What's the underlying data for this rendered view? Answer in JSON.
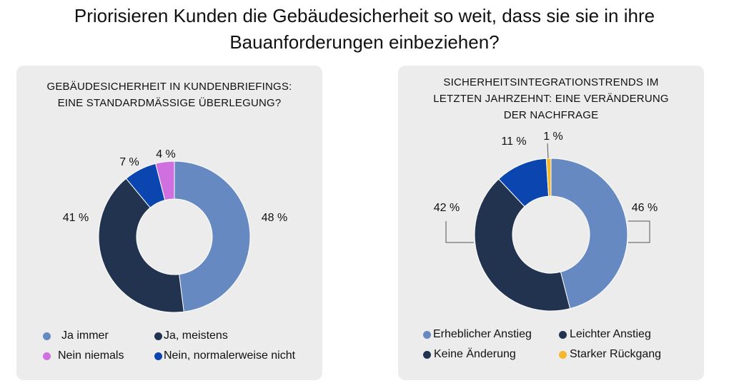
{
  "title_line1": "Priorisieren Kunden die Gebäudesicherheit so weit, dass sie sie in ihre",
  "title_line2": "Bauanforderungen einbeziehen?",
  "colors": {
    "steel_blue": "#6589c0",
    "navy": "#223350",
    "royal_blue": "#0a45b0",
    "violet": "#cf6fe0",
    "amber": "#f5b82c",
    "card_bg": "#ececec"
  },
  "chart_data": [
    {
      "type": "pie",
      "donut": true,
      "title_line1": "GEBÄUDESICHERHEIT IN KUNDENBRIEFINGS:",
      "title_line2": "EINE STANDARDMÄSSIGE ÜBERLEGUNG?",
      "slices": [
        {
          "label": "Ja immer",
          "value": 48,
          "display": "48 %",
          "color": "#6589c0"
        },
        {
          "label": "Ja, meistens",
          "value": 41,
          "display": "41 %",
          "color": "#223350"
        },
        {
          "label": "Nein, normalerweise nicht",
          "value": 7,
          "display": "7 %",
          "color": "#0a45b0"
        },
        {
          "label": "Nein niemals",
          "value": 4,
          "display": "4 %",
          "color": "#cf6fe0"
        }
      ],
      "legend": [
        "Ja immer",
        "Ja, meistens",
        "Nein niemals",
        "Nein, normalerweise nicht"
      ],
      "legend_placement": "bottom"
    },
    {
      "type": "pie",
      "donut": true,
      "title_line1": "SICHERHEITSINTEGRATIONSTRENDS IM",
      "title_line2": "LETZTEN JAHRZEHNT: EINE VERÄNDERUNG",
      "title_line3": "DER NACHFRAGE",
      "slices": [
        {
          "label": "Erheblicher Anstieg",
          "value": 46,
          "display": "46 %",
          "color": "#6589c0"
        },
        {
          "label": "Keine Änderung",
          "value": 42,
          "display": "42 %",
          "color": "#223350"
        },
        {
          "label": "Leichter Anstieg",
          "value": 11,
          "display": "11 %",
          "color": "#0a45b0"
        },
        {
          "label": "Starker Rückgang",
          "value": 1,
          "display": "1 %",
          "color": "#f5b82c"
        }
      ],
      "legend": [
        "Erheblicher Anstieg",
        "Leichter Anstieg",
        "Keine Änderung",
        "Starker Rückgang"
      ],
      "legend_placement": "bottom"
    }
  ]
}
